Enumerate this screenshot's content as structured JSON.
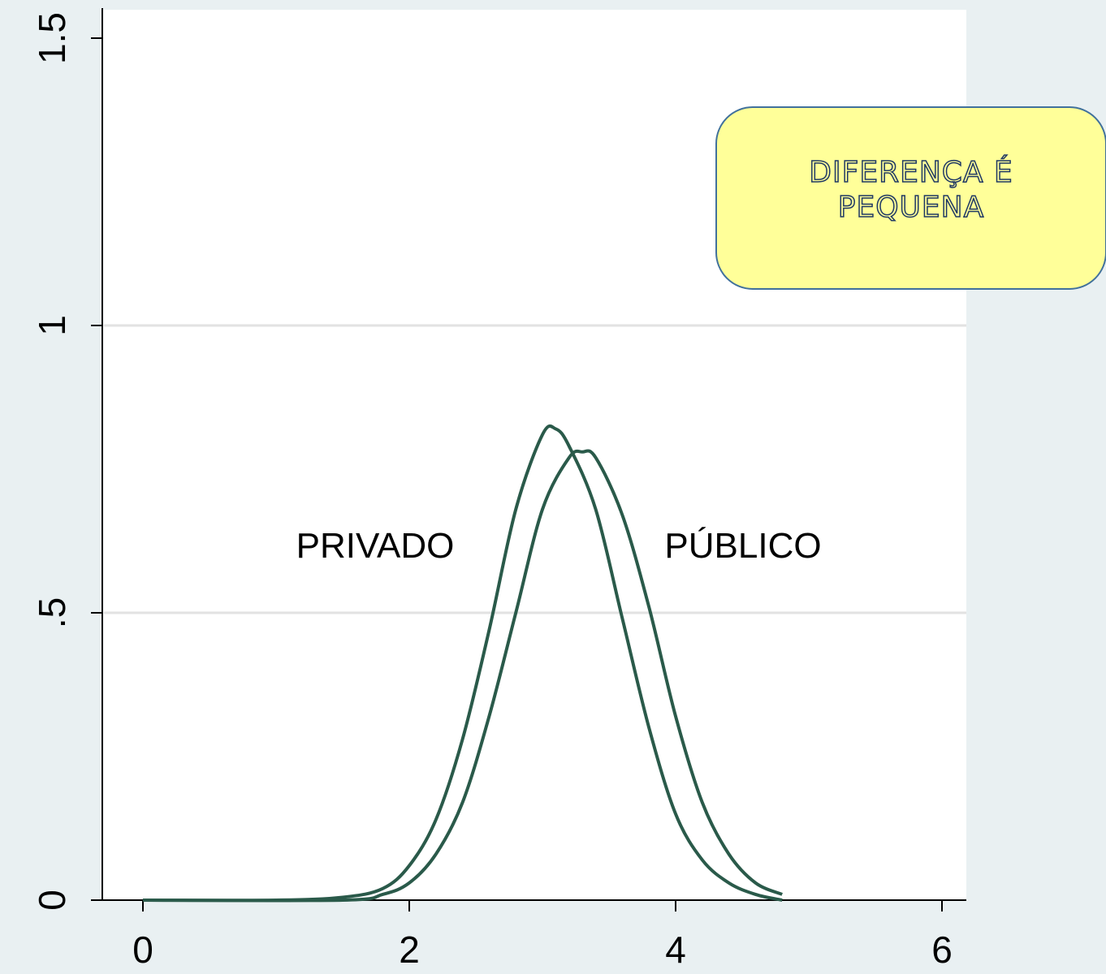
{
  "chart_data": {
    "type": "line",
    "x_range": [
      0,
      6
    ],
    "y_range": [
      0,
      1.5
    ],
    "x_ticks": [
      "0",
      "2",
      "4",
      "6"
    ],
    "y_ticks": [
      "0",
      ".5",
      "1",
      "1.5"
    ],
    "grid": true,
    "series": [
      {
        "name": "PRIVADO",
        "x": [
          0.0,
          1.0,
          1.5,
          1.8,
          2.0,
          2.2,
          2.4,
          2.6,
          2.8,
          3.0,
          3.1,
          3.2,
          3.4,
          3.6,
          3.8,
          4.0,
          4.2,
          4.4,
          4.6,
          4.8
        ],
        "y": [
          0.0,
          0.0,
          0.005,
          0.02,
          0.06,
          0.14,
          0.28,
          0.47,
          0.68,
          0.81,
          0.82,
          0.79,
          0.68,
          0.49,
          0.3,
          0.15,
          0.07,
          0.03,
          0.01,
          0.0
        ]
      },
      {
        "name": "PÚBLICO",
        "x": [
          0.0,
          1.5,
          1.8,
          2.0,
          2.2,
          2.4,
          2.6,
          2.8,
          3.0,
          3.2,
          3.3,
          3.4,
          3.6,
          3.8,
          4.0,
          4.2,
          4.4,
          4.6,
          4.8
        ],
        "y": [
          0.0,
          0.0,
          0.01,
          0.03,
          0.08,
          0.17,
          0.32,
          0.5,
          0.68,
          0.77,
          0.78,
          0.77,
          0.67,
          0.51,
          0.32,
          0.17,
          0.08,
          0.03,
          0.01
        ]
      }
    ],
    "colors": {
      "line": "#2a5a4a",
      "grid": "#e2e2e2",
      "plot_bg": "#ffffff",
      "outer_bg": "#e9f0f2"
    }
  },
  "annotations": {
    "privado_label": "PRIVADO",
    "publico_label": "PÚBLICO",
    "callout_line1": "DIFERENÇA É",
    "callout_line2": "PEQUENA"
  },
  "callout": {
    "fill": "#ffff99",
    "border": "#41719c"
  }
}
